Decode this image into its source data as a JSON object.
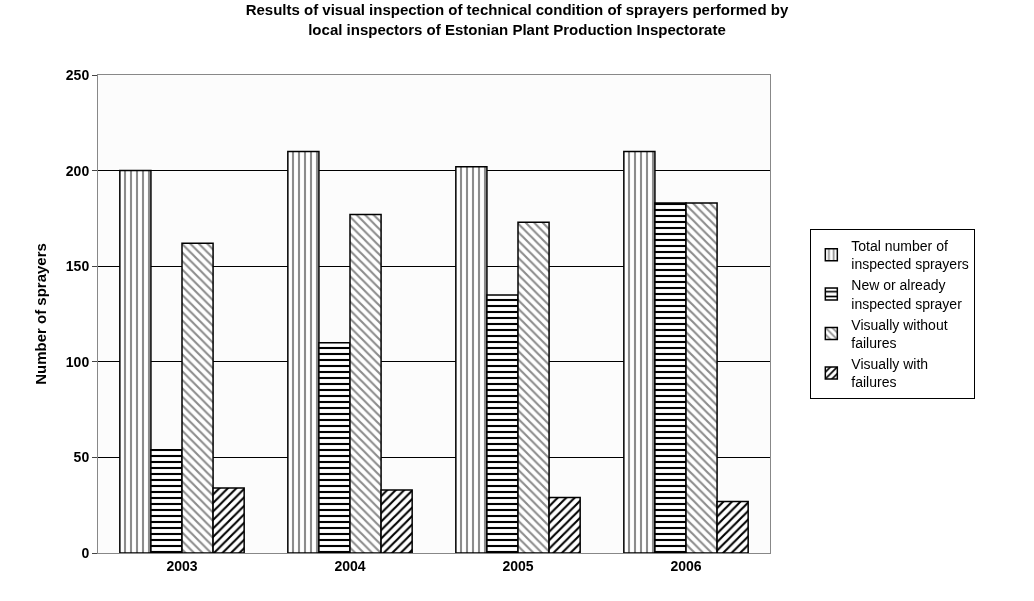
{
  "chart_data": {
    "type": "bar",
    "title": "Results of visual inspection of technical condition of sprayers performed by local inspectors of Estonian Plant Production Inspectorate",
    "ylabel": "Number of sprayers",
    "categories": [
      "2003",
      "2004",
      "2005",
      "2006"
    ],
    "series": [
      {
        "name": "Total number of inspected sprayers",
        "color": "#000000",
        "values": [
          200,
          210,
          202,
          210
        ]
      },
      {
        "name": "New or already inspected sprayer",
        "color": "#000000",
        "values": [
          54,
          110,
          135,
          183
        ]
      },
      {
        "name": "Visually without failures",
        "color": "#000000",
        "values": [
          162,
          177,
          173,
          183
        ]
      },
      {
        "name": "Visually with failures",
        "color": "#000000",
        "values": [
          34,
          33,
          29,
          27
        ]
      }
    ],
    "ylim": [
      0,
      250
    ],
    "yticks": [
      0,
      50,
      100,
      150,
      200,
      250
    ],
    "grid": "y",
    "legend": "right"
  }
}
